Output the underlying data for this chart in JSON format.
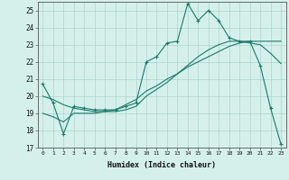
{
  "xlabel": "Humidex (Indice chaleur)",
  "ylabel": "",
  "xlim": [
    -0.5,
    23.5
  ],
  "ylim": [
    17,
    25.5
  ],
  "yticks": [
    17,
    18,
    19,
    20,
    21,
    22,
    23,
    24,
    25
  ],
  "xticks": [
    0,
    1,
    2,
    3,
    4,
    5,
    6,
    7,
    8,
    9,
    10,
    11,
    12,
    13,
    14,
    15,
    16,
    17,
    18,
    19,
    20,
    21,
    22,
    23
  ],
  "bg_color": "#d5f0eb",
  "grid_color": "#aed4cd",
  "line_color": "#1a7a6a",
  "line1_x": [
    0,
    1,
    2,
    3,
    4,
    5,
    6,
    7,
    8,
    9,
    10,
    11,
    12,
    13,
    14,
    15,
    16,
    17,
    18,
    19,
    20,
    21,
    22,
    23
  ],
  "line1_y": [
    20.7,
    19.6,
    17.8,
    19.4,
    19.3,
    19.2,
    19.2,
    19.2,
    19.4,
    19.6,
    22.0,
    22.3,
    23.1,
    23.2,
    25.4,
    24.4,
    25.0,
    24.4,
    23.4,
    23.2,
    23.2,
    21.8,
    19.3,
    17.2
  ],
  "line2_x": [
    0,
    1,
    2,
    3,
    4,
    5,
    6,
    7,
    8,
    9,
    10,
    11,
    12,
    13,
    14,
    15,
    16,
    17,
    18,
    19,
    20,
    21,
    22,
    23
  ],
  "line2_y": [
    19.0,
    18.8,
    18.5,
    19.0,
    19.0,
    19.0,
    19.1,
    19.2,
    19.5,
    19.8,
    20.3,
    20.6,
    21.0,
    21.3,
    21.7,
    22.0,
    22.3,
    22.6,
    22.9,
    23.1,
    23.2,
    23.2,
    23.2,
    23.2
  ],
  "line3_x": [
    0,
    1,
    2,
    3,
    4,
    5,
    6,
    7,
    8,
    9,
    10,
    11,
    12,
    13,
    14,
    15,
    16,
    17,
    18,
    19,
    20,
    21,
    22,
    23
  ],
  "line3_y": [
    20.0,
    19.8,
    19.5,
    19.3,
    19.2,
    19.1,
    19.1,
    19.1,
    19.2,
    19.4,
    20.0,
    20.4,
    20.8,
    21.3,
    21.8,
    22.3,
    22.7,
    23.0,
    23.2,
    23.2,
    23.1,
    23.0,
    22.5,
    21.9
  ]
}
